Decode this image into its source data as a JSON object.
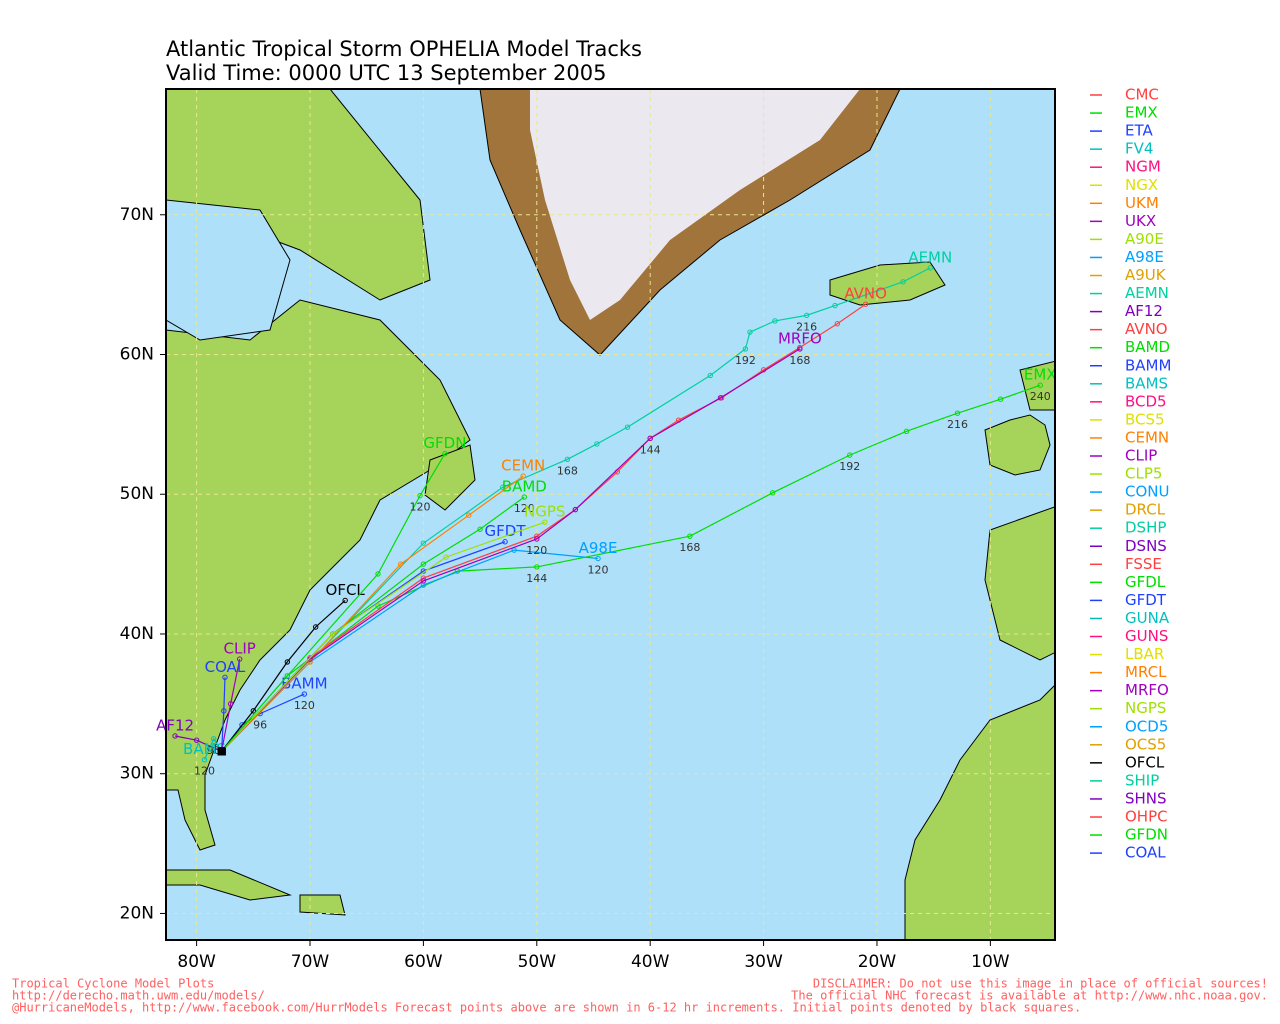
{
  "chart_data": {
    "type": "track-map",
    "title": "Atlantic Tropical Storm OPHELIA Model Tracks",
    "subtitle": "Valid Time: 0000 UTC 13 September 2005",
    "xlim": [
      -82.7,
      -4.3
    ],
    "ylim": [
      18.1,
      79
    ],
    "xticks": [
      {
        "value": -80,
        "label": "80W"
      },
      {
        "value": -70,
        "label": "70W"
      },
      {
        "value": -60,
        "label": "60W"
      },
      {
        "value": -50,
        "label": "50W"
      },
      {
        "value": -40,
        "label": "40W"
      },
      {
        "value": -30,
        "label": "30W"
      },
      {
        "value": -20,
        "label": "20W"
      },
      {
        "value": -10,
        "label": "10W"
      }
    ],
    "yticks": [
      {
        "value": 20,
        "label": "20N"
      },
      {
        "value": 30,
        "label": "30N"
      },
      {
        "value": 40,
        "label": "40N"
      },
      {
        "value": 50,
        "label": "50N"
      },
      {
        "value": 60,
        "label": "60N"
      },
      {
        "value": 70,
        "label": "70N"
      }
    ],
    "grid": true,
    "series": [
      {
        "name": "CMC",
        "color": "#ff4040"
      },
      {
        "name": "EMX",
        "color": "#00dd00",
        "lon": [
          -77.8,
          -72,
          -64,
          -57,
          -50,
          -36.5,
          -29.2,
          -22.4,
          -17.4,
          -12.9,
          -9.1,
          -5.6
        ],
        "lat": [
          31.6,
          37,
          42,
          44.5,
          44.8,
          47,
          50.1,
          52.8,
          54.5,
          55.8,
          56.8,
          57.8
        ],
        "hours": [
          null,
          null,
          null,
          null,
          144,
          168,
          null,
          192,
          null,
          216,
          null,
          240
        ]
      },
      {
        "name": "ETA",
        "color": "#2040ff"
      },
      {
        "name": "FV4",
        "color": "#00c0c0"
      },
      {
        "name": "NGM",
        "color": "#ff1080"
      },
      {
        "name": "NGX",
        "color": "#e0e000"
      },
      {
        "name": "UKM",
        "color": "#ff8000"
      },
      {
        "name": "UKX",
        "color": "#a000c0"
      },
      {
        "name": "A90E",
        "color": "#a0e000"
      },
      {
        "name": "A98E",
        "color": "#00a0ff",
        "lon": [
          -77.8,
          -70,
          -60,
          -52,
          -44.6
        ],
        "lat": [
          31.6,
          38,
          43.5,
          46,
          45.4
        ],
        "hours": [
          null,
          null,
          null,
          null,
          120
        ]
      },
      {
        "name": "A9UK",
        "color": "#e0a000"
      },
      {
        "name": "AEMN",
        "color": "#00d0a0",
        "lon": [
          -77.8,
          -70,
          -60,
          -53,
          -47.3,
          -44.7,
          -42,
          -34.7,
          -31.6,
          -31.2,
          -29,
          -26.2,
          -23.7,
          -17.7,
          -15.3
        ],
        "lat": [
          31.6,
          38,
          46.5,
          50.5,
          52.5,
          53.6,
          54.8,
          58.5,
          60.4,
          61.6,
          62.4,
          62.8,
          63.5,
          65.2,
          66.2
        ],
        "hours": [
          null,
          null,
          null,
          null,
          168,
          null,
          null,
          null,
          192,
          null,
          null,
          216,
          null,
          null,
          null
        ]
      },
      {
        "name": "AF12",
        "color": "#8000c0",
        "lon": [
          -77.8,
          -80,
          -81.9
        ],
        "lat": [
          31.6,
          32.4,
          32.7
        ]
      },
      {
        "name": "AVNO",
        "color": "#ff4040",
        "lon": [
          -77.8,
          -70,
          -60,
          -50,
          -46.6,
          -42.9,
          -40,
          -37.5,
          -33.7,
          -30,
          -26.8,
          -23.5,
          -21
        ],
        "lat": [
          31.6,
          38.3,
          44,
          47,
          48.9,
          51.6,
          54,
          55.3,
          56.9,
          58.9,
          60.5,
          62.2,
          63.6
        ]
      },
      {
        "name": "BAMD",
        "color": "#00dd00",
        "lon": [
          -77.8,
          -68,
          -60,
          -55,
          -51.1
        ],
        "lat": [
          31.6,
          40,
          45,
          47.5,
          49.8
        ],
        "hours": [
          null,
          null,
          null,
          null,
          120
        ]
      },
      {
        "name": "BAMM",
        "color": "#2040ff",
        "lon": [
          -77.8,
          -76,
          -74.4,
          -70.5
        ],
        "lat": [
          31.6,
          33.5,
          34.3,
          35.7
        ],
        "hours": [
          null,
          null,
          96,
          120
        ]
      },
      {
        "name": "BAMS",
        "color": "#00c0c0",
        "lon": [
          -77.8,
          -78.5,
          -79.3
        ],
        "lat": [
          31.6,
          32.5,
          31
        ],
        "hours": [
          null,
          96,
          120
        ]
      },
      {
        "name": "BCD5",
        "color": "#ff1080"
      },
      {
        "name": "BCS5",
        "color": "#e0e000"
      },
      {
        "name": "CEMN",
        "color": "#ff8000",
        "lon": [
          -77.8,
          -70,
          -62,
          -56,
          -51.2
        ],
        "lat": [
          31.6,
          38,
          45,
          48.5,
          51.3
        ]
      },
      {
        "name": "CLIP",
        "color": "#a000c0",
        "lon": [
          -77.8,
          -77,
          -76.2
        ],
        "lat": [
          31.6,
          35,
          38.2
        ]
      },
      {
        "name": "CLP5",
        "color": "#a0e000"
      },
      {
        "name": "CONU",
        "color": "#00a0ff"
      },
      {
        "name": "DRCL",
        "color": "#e0a000"
      },
      {
        "name": "DSHP",
        "color": "#00d0a0"
      },
      {
        "name": "DSNS",
        "color": "#8000c0"
      },
      {
        "name": "FSSE",
        "color": "#ff4040"
      },
      {
        "name": "GFDL",
        "color": "#00dd00"
      },
      {
        "name": "GFDT",
        "color": "#2040ff",
        "lon": [
          -77.8,
          -68,
          -60,
          -52.8
        ],
        "lat": [
          31.6,
          40,
          44.5,
          46.6
        ]
      },
      {
        "name": "GUNA",
        "color": "#00c0c0"
      },
      {
        "name": "GUNS",
        "color": "#ff1080"
      },
      {
        "name": "LBAR",
        "color": "#e0e000"
      },
      {
        "name": "MRCL",
        "color": "#ff8000"
      },
      {
        "name": "MRFO",
        "color": "#a000c0",
        "lon": [
          -77.8,
          -70,
          -60,
          -50,
          -46.6,
          -40,
          -33.8,
          -26.8
        ],
        "lat": [
          31.6,
          38.2,
          43.8,
          46.8,
          48.9,
          54,
          56.9,
          60.4
        ],
        "hours": [
          null,
          null,
          null,
          120,
          null,
          144,
          null,
          168
        ]
      },
      {
        "name": "NGPS",
        "color": "#a0e000",
        "lon": [
          -77.8,
          -68,
          -58,
          -49.3
        ],
        "lat": [
          31.6,
          40,
          45.5,
          48
        ]
      },
      {
        "name": "OCD5",
        "color": "#00a0ff"
      },
      {
        "name": "OCS5",
        "color": "#e0a000"
      },
      {
        "name": "OFCL",
        "color": "#000000",
        "lon": [
          -77.8,
          -75,
          -72,
          -69.5,
          -66.9
        ],
        "lat": [
          31.6,
          34.5,
          38,
          40.5,
          42.4
        ]
      },
      {
        "name": "SHIP",
        "color": "#00d0a0"
      },
      {
        "name": "SHNS",
        "color": "#8000c0"
      },
      {
        "name": "OHPC",
        "color": "#ff4040"
      },
      {
        "name": "GFDN",
        "color": "#00dd00",
        "lon": [
          -77.8,
          -72,
          -64,
          -60.3,
          -58.1
        ],
        "lat": [
          31.6,
          37,
          44.3,
          49.9,
          52.9
        ],
        "hours": [
          null,
          null,
          null,
          120,
          null
        ]
      },
      {
        "name": "COAL",
        "color": "#2040ff",
        "lon": [
          -77.8,
          -77.6,
          -77.5
        ],
        "lat": [
          31.6,
          34.5,
          36.9
        ]
      }
    ],
    "footer_left": [
      "Tropical Cyclone Model Plots",
      "http://derecho.math.uwm.edu/models/",
      "@HurricaneModels, http://www.facebook.com/HurrModels  Forecast points above are shown in 6-12 hr increments. Initial points denoted by black squares."
    ],
    "footer_right": [
      "DISCLAIMER: Do not use this image in place of official sources!",
      "The official NHC forecast is available at http://www.nhc.noaa.gov."
    ]
  }
}
